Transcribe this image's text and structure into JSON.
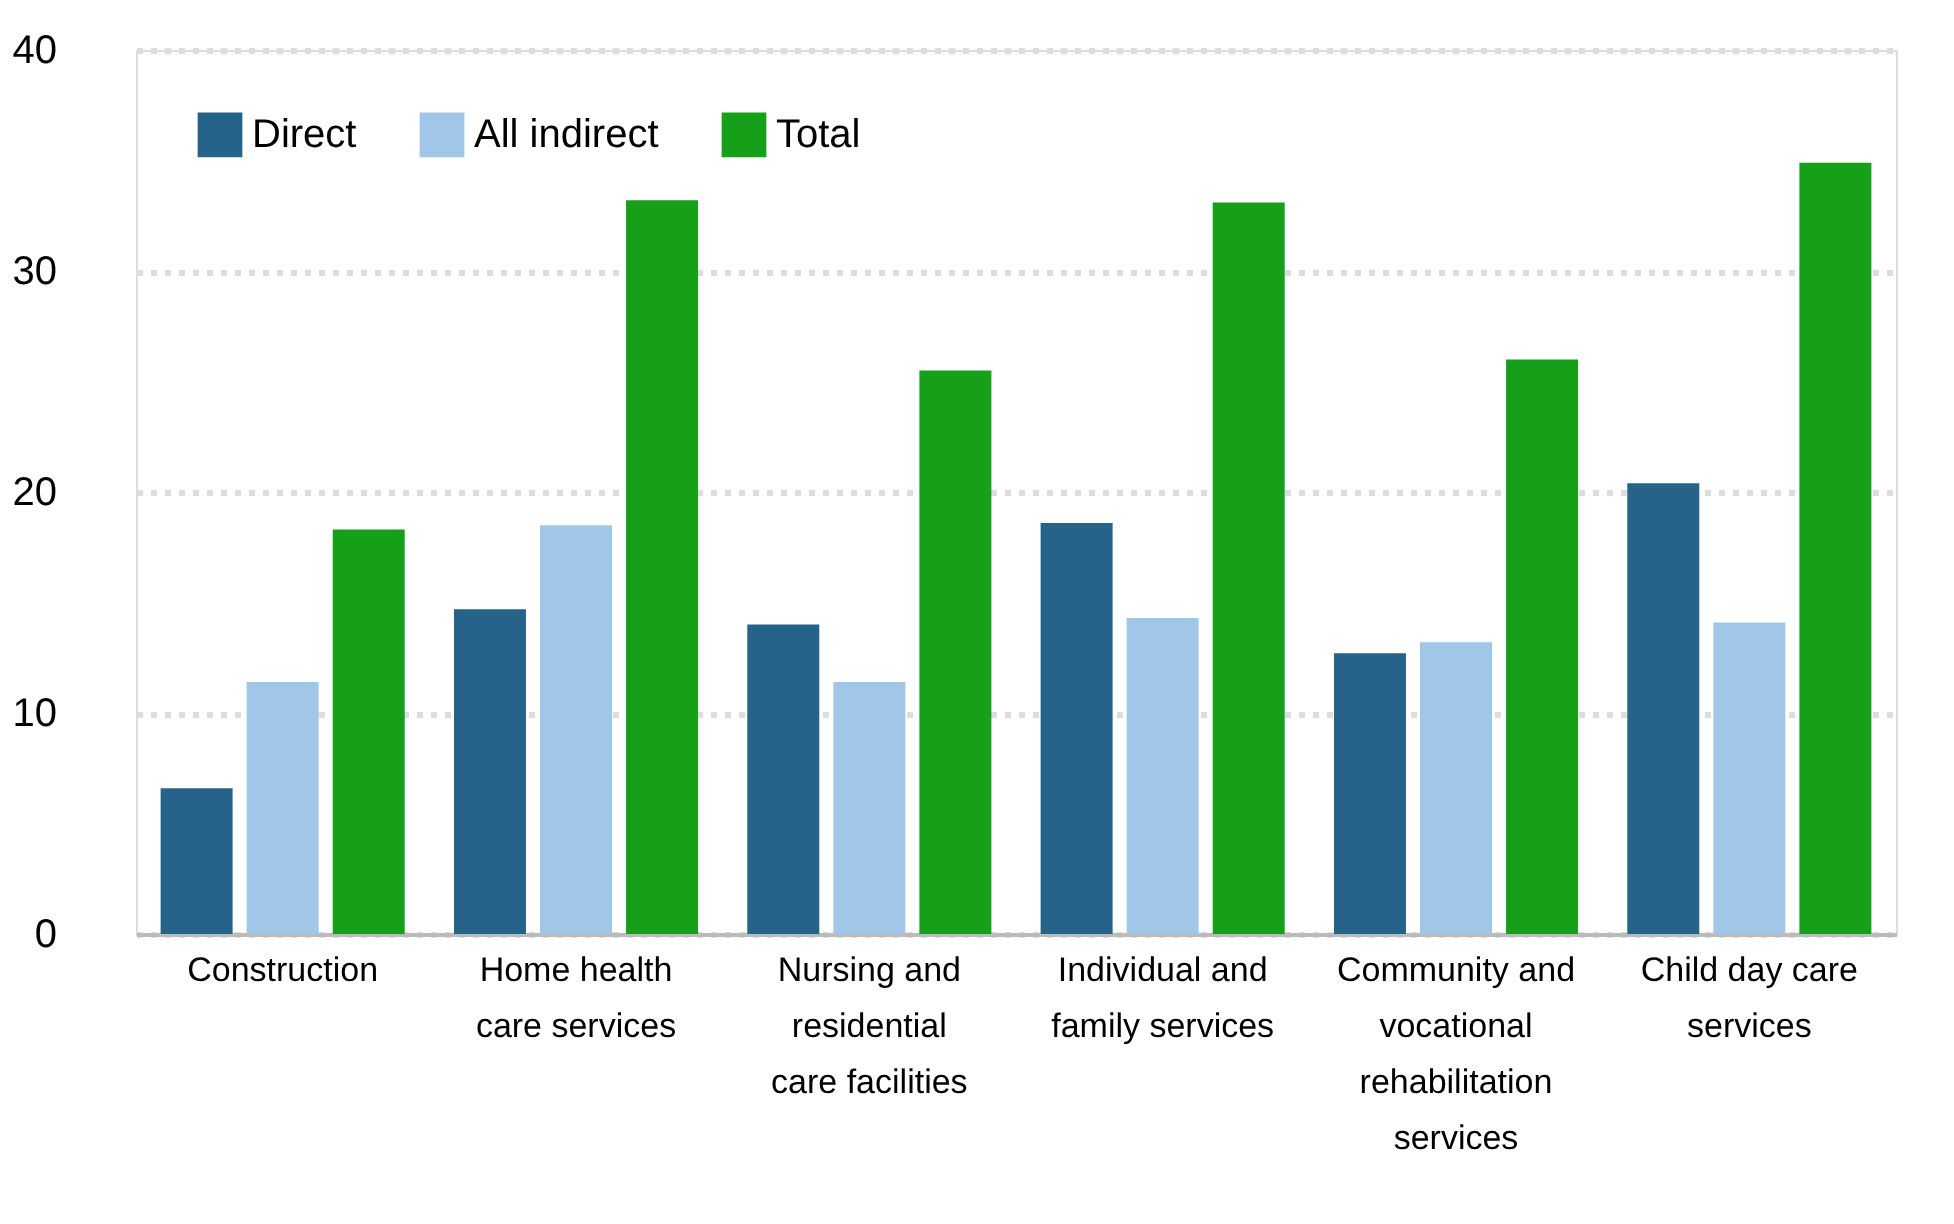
{
  "chart_data": {
    "type": "bar",
    "categories": [
      "Construction",
      "Home health care services",
      "Nursing and residential care facilities",
      "Individual and family services",
      "Community and vocational rehabilitation services",
      "Child day care services"
    ],
    "series": [
      {
        "name": "Direct",
        "color": "#26638a",
        "values": [
          6.6,
          14.7,
          14.0,
          18.6,
          12.7,
          20.4
        ]
      },
      {
        "name": "All indirect",
        "color": "#a0c6e8",
        "values": [
          11.4,
          18.5,
          11.4,
          14.3,
          13.2,
          14.1
        ]
      },
      {
        "name": "Total",
        "color": "#16a01a",
        "values": [
          18.3,
          33.2,
          25.5,
          33.1,
          26.0,
          34.9
        ]
      }
    ],
    "ylim": [
      0,
      40
    ],
    "yticks": [
      0,
      10,
      20,
      30,
      40
    ],
    "grid": "y",
    "legend": "top left"
  }
}
